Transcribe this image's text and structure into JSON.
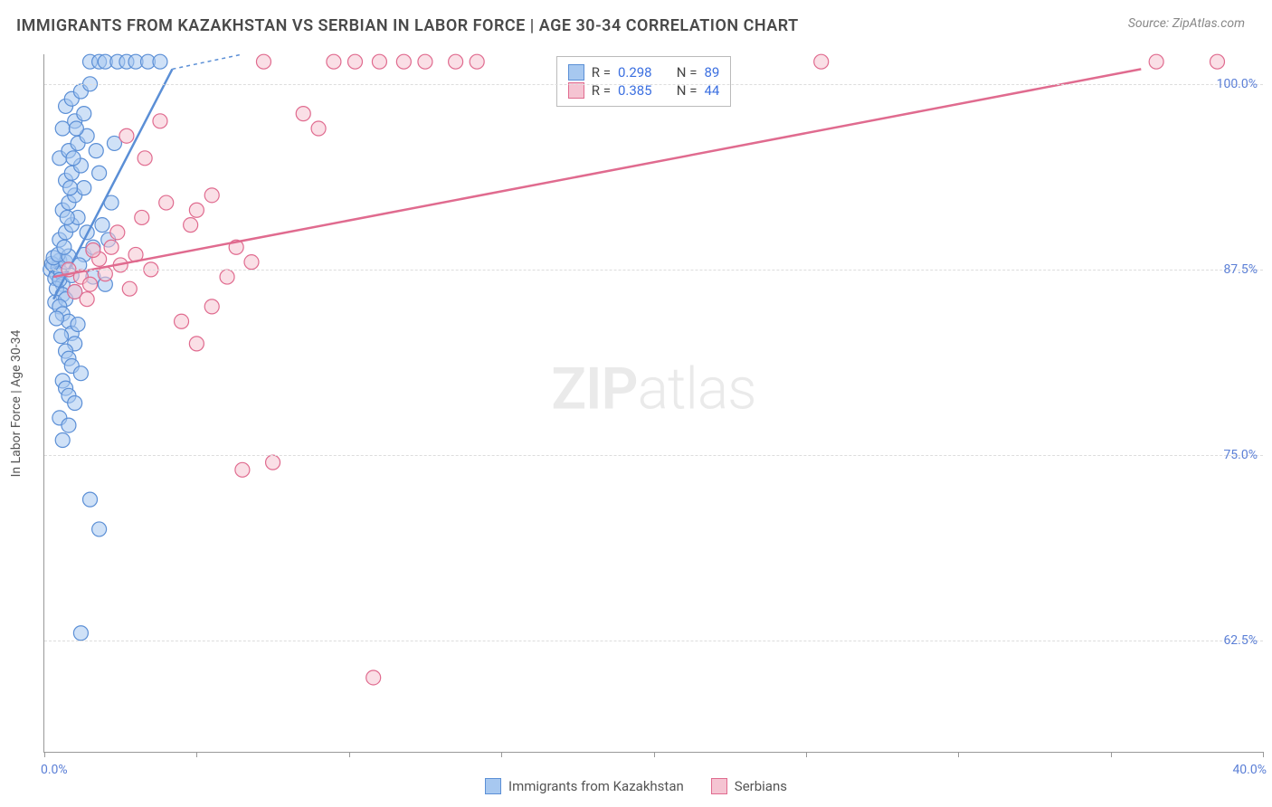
{
  "title": "IMMIGRANTS FROM KAZAKHSTAN VS SERBIAN IN LABOR FORCE | AGE 30-34 CORRELATION CHART",
  "source": "Source: ZipAtlas.com",
  "ylabel": "In Labor Force | Age 30-34",
  "watermark_a": "ZIP",
  "watermark_b": "atlas",
  "chart": {
    "type": "scatter",
    "xlim": [
      0,
      40
    ],
    "ylim": [
      55,
      102
    ],
    "xticks": [
      0,
      5,
      10,
      15,
      20,
      25,
      30,
      35,
      40
    ],
    "yticks": [
      62.5,
      75.0,
      87.5,
      100.0
    ],
    "xtick_labels": {
      "0": "0.0%",
      "40": "40.0%"
    },
    "ytick_labels": [
      "62.5%",
      "75.0%",
      "87.5%",
      "100.0%"
    ],
    "grid_color": "#dddddd",
    "background": "#ffffff",
    "marker_radius": 8,
    "marker_stroke_width": 1.2,
    "series": [
      {
        "name": "Immigrants from Kazakhstan",
        "fill": "#a7c8f0",
        "stroke": "#5b8fd6",
        "fill_opacity": 0.55,
        "R": 0.298,
        "N": 89,
        "trend": {
          "x1": 0.3,
          "y1": 85.5,
          "x2": 4.2,
          "y2": 101,
          "dash_ext": {
            "x2": 6.5,
            "y2": 102
          }
        },
        "points": [
          [
            0.2,
            87.5
          ],
          [
            0.3,
            87.8
          ],
          [
            0.4,
            87.2
          ],
          [
            0.5,
            88.1
          ],
          [
            0.35,
            86.9
          ],
          [
            0.45,
            87.6
          ],
          [
            0.55,
            87.3
          ],
          [
            0.25,
            87.9
          ],
          [
            0.6,
            86.5
          ],
          [
            0.7,
            88.0
          ],
          [
            0.4,
            86.2
          ],
          [
            0.5,
            86.8
          ],
          [
            0.3,
            88.3
          ],
          [
            0.45,
            88.5
          ],
          [
            0.6,
            85.8
          ],
          [
            0.35,
            85.3
          ],
          [
            0.8,
            88.4
          ],
          [
            0.9,
            87.1
          ],
          [
            1.0,
            86.0
          ],
          [
            0.7,
            85.5
          ],
          [
            0.5,
            85.0
          ],
          [
            0.6,
            84.5
          ],
          [
            0.8,
            84.0
          ],
          [
            0.9,
            83.2
          ],
          [
            1.1,
            83.8
          ],
          [
            1.0,
            82.5
          ],
          [
            0.7,
            82.0
          ],
          [
            0.8,
            81.5
          ],
          [
            0.9,
            81.0
          ],
          [
            1.2,
            80.5
          ],
          [
            0.6,
            80.0
          ],
          [
            0.7,
            79.5
          ],
          [
            0.8,
            79.0
          ],
          [
            1.0,
            78.5
          ],
          [
            0.5,
            89.5
          ],
          [
            0.7,
            90.0
          ],
          [
            0.9,
            90.5
          ],
          [
            1.1,
            91.0
          ],
          [
            0.6,
            91.5
          ],
          [
            0.8,
            92.0
          ],
          [
            1.0,
            92.5
          ],
          [
            1.3,
            93.0
          ],
          [
            0.7,
            93.5
          ],
          [
            0.9,
            94.0
          ],
          [
            1.2,
            94.5
          ],
          [
            0.5,
            95.0
          ],
          [
            0.8,
            95.5
          ],
          [
            1.1,
            96.0
          ],
          [
            1.4,
            96.5
          ],
          [
            0.6,
            97.0
          ],
          [
            1.0,
            97.5
          ],
          [
            1.3,
            98.0
          ],
          [
            0.7,
            98.5
          ],
          [
            0.5,
            77.5
          ],
          [
            0.8,
            77.0
          ],
          [
            0.6,
            76.0
          ],
          [
            1.5,
            101.5
          ],
          [
            1.8,
            101.5
          ],
          [
            2.0,
            101.5
          ],
          [
            2.4,
            101.5
          ],
          [
            2.7,
            101.5
          ],
          [
            3.0,
            101.5
          ],
          [
            3.4,
            101.5
          ],
          [
            3.8,
            101.5
          ],
          [
            1.3,
            88.5
          ],
          [
            1.6,
            89.0
          ],
          [
            1.9,
            90.5
          ],
          [
            2.2,
            92.0
          ],
          [
            1.5,
            72.0
          ],
          [
            1.8,
            70.0
          ],
          [
            1.2,
            63.0
          ],
          [
            1.6,
            87.0
          ],
          [
            2.0,
            86.5
          ],
          [
            1.8,
            94.0
          ],
          [
            2.3,
            96.0
          ],
          [
            1.4,
            90.0
          ],
          [
            1.7,
            95.5
          ],
          [
            2.1,
            89.5
          ],
          [
            0.9,
            99.0
          ],
          [
            1.2,
            99.5
          ],
          [
            1.5,
            100.0
          ],
          [
            0.4,
            84.2
          ],
          [
            0.55,
            83.0
          ],
          [
            0.65,
            89.0
          ],
          [
            0.75,
            91.0
          ],
          [
            0.85,
            93.0
          ],
          [
            0.95,
            95.0
          ],
          [
            1.05,
            97.0
          ],
          [
            1.15,
            87.8
          ]
        ]
      },
      {
        "name": "Serbians",
        "fill": "#f5c4d2",
        "stroke": "#e06b8f",
        "fill_opacity": 0.55,
        "R": 0.385,
        "N": 44,
        "trend": {
          "x1": 0.3,
          "y1": 87.0,
          "x2": 36.0,
          "y2": 101.0
        },
        "points": [
          [
            0.8,
            87.5
          ],
          [
            1.2,
            87.0
          ],
          [
            1.5,
            86.5
          ],
          [
            2.0,
            87.2
          ],
          [
            2.5,
            87.8
          ],
          [
            1.8,
            88.2
          ],
          [
            2.2,
            89.0
          ],
          [
            3.0,
            88.5
          ],
          [
            1.0,
            86.0
          ],
          [
            1.4,
            85.5
          ],
          [
            2.8,
            86.2
          ],
          [
            3.5,
            87.5
          ],
          [
            1.6,
            88.8
          ],
          [
            2.4,
            90.0
          ],
          [
            3.2,
            91.0
          ],
          [
            4.0,
            92.0
          ],
          [
            4.8,
            90.5
          ],
          [
            5.5,
            92.5
          ],
          [
            5.0,
            91.5
          ],
          [
            6.3,
            89.0
          ],
          [
            6.0,
            87.0
          ],
          [
            5.5,
            85.0
          ],
          [
            4.5,
            84.0
          ],
          [
            5.0,
            82.5
          ],
          [
            6.8,
            88.0
          ],
          [
            8.5,
            98.0
          ],
          [
            7.2,
            101.5
          ],
          [
            9.0,
            97.0
          ],
          [
            9.5,
            101.5
          ],
          [
            10.2,
            101.5
          ],
          [
            11.0,
            101.5
          ],
          [
            11.8,
            101.5
          ],
          [
            12.5,
            101.5
          ],
          [
            13.5,
            101.5
          ],
          [
            14.2,
            101.5
          ],
          [
            25.5,
            101.5
          ],
          [
            36.5,
            101.5
          ],
          [
            38.5,
            101.5
          ],
          [
            6.5,
            74.0
          ],
          [
            7.5,
            74.5
          ],
          [
            10.8,
            60.0
          ],
          [
            2.7,
            96.5
          ],
          [
            3.3,
            95.0
          ],
          [
            3.8,
            97.5
          ]
        ]
      }
    ],
    "legend": {
      "R_label": "R =",
      "N_label": "N ="
    },
    "bottom_legend": [
      {
        "swatch_fill": "#a7c8f0",
        "swatch_stroke": "#5b8fd6",
        "label": "Immigrants from Kazakhstan"
      },
      {
        "swatch_fill": "#f5c4d2",
        "swatch_stroke": "#e06b8f",
        "label": "Serbians"
      }
    ]
  }
}
